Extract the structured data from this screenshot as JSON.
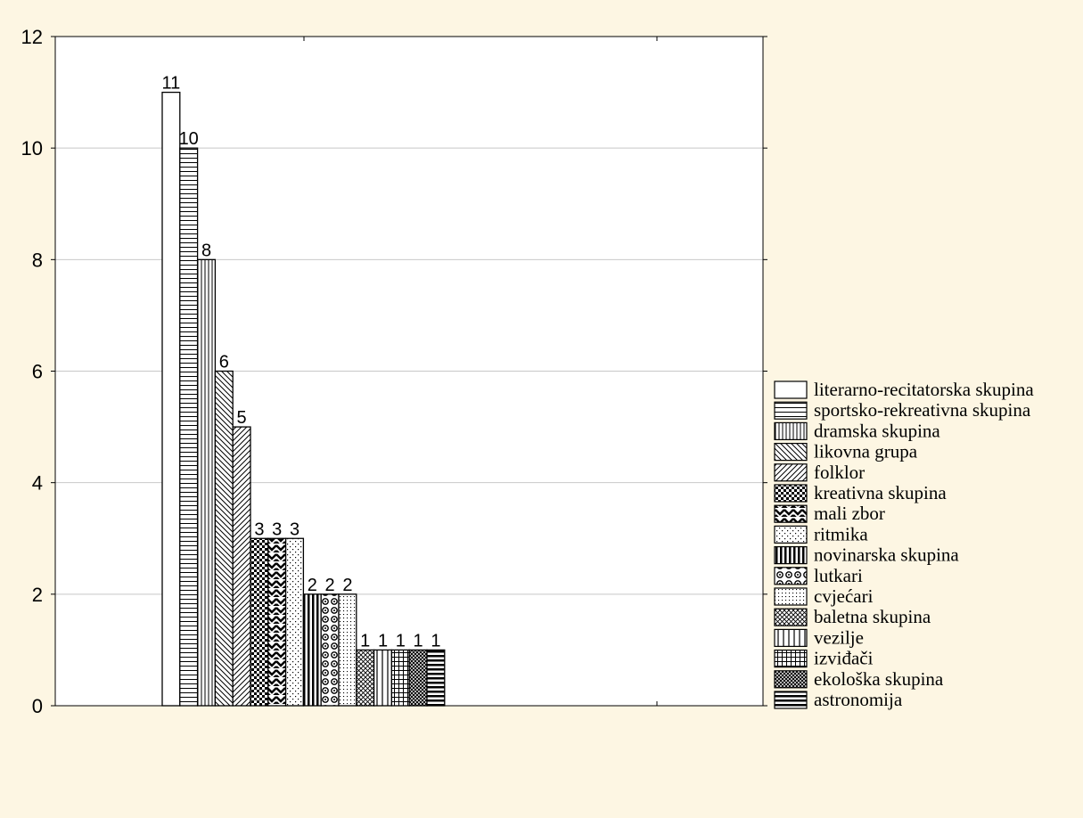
{
  "chart_data": {
    "type": "bar",
    "title": "",
    "xlabel": "",
    "ylabel": "",
    "ylim": [
      0,
      12
    ],
    "yticks": [
      0,
      2,
      4,
      6,
      8,
      10,
      12
    ],
    "grid": true,
    "legend_position": "right",
    "series": [
      {
        "name": "literarno-recitatorska skupina",
        "value": 11,
        "label": "11",
        "pattern": "blank"
      },
      {
        "name": "sportsko-rekreativna skupina",
        "value": 10,
        "label": "10",
        "pattern": "hlines"
      },
      {
        "name": "dramska skupina",
        "value": 8,
        "label": "8",
        "pattern": "vlines"
      },
      {
        "name": "likovna grupa",
        "value": 6,
        "label": "6",
        "pattern": "diag-back"
      },
      {
        "name": "folklor",
        "value": 5,
        "label": "5",
        "pattern": "diag-fwd"
      },
      {
        "name": "kreativna skupina",
        "value": 3,
        "label": "3",
        "pattern": "checker"
      },
      {
        "name": "mali zbor",
        "value": 3,
        "label": "3",
        "pattern": "zigzag"
      },
      {
        "name": "ritmika",
        "value": 3,
        "label": "3",
        "pattern": "dots"
      },
      {
        "name": "novinarska skupina",
        "value": 2,
        "label": "2",
        "pattern": "thick-vlines"
      },
      {
        "name": "lutkari",
        "value": 2,
        "label": "2",
        "pattern": "circles"
      },
      {
        "name": "cvjećari",
        "value": 2,
        "label": "2",
        "pattern": "dense-dots"
      },
      {
        "name": "baletna skupina",
        "value": 1,
        "label": "1",
        "pattern": "crosshatch"
      },
      {
        "name": "vezilje",
        "value": 1,
        "label": "1",
        "pattern": "sparse-vlines"
      },
      {
        "name": "izviđači",
        "value": 1,
        "label": "1",
        "pattern": "grid"
      },
      {
        "name": "ekološka skupina",
        "value": 1,
        "label": "1",
        "pattern": "crosshatch-dense"
      },
      {
        "name": "astronomija",
        "value": 1,
        "label": "1",
        "pattern": "thick-hlines"
      }
    ]
  }
}
